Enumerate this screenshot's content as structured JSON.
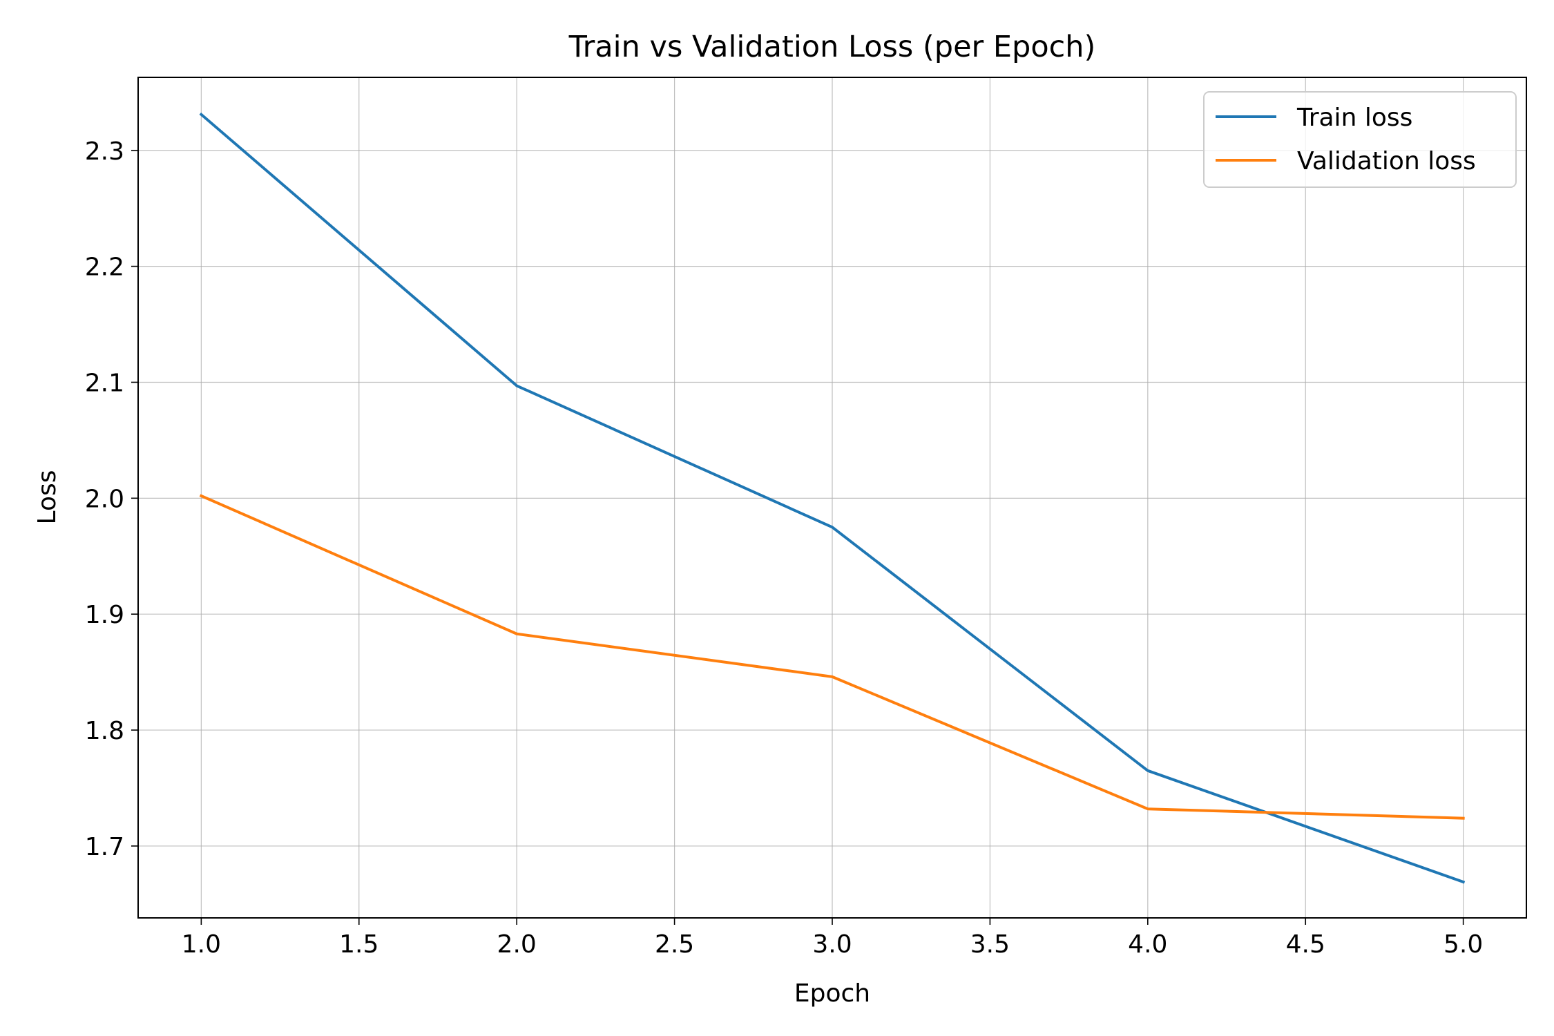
{
  "chart_data": {
    "type": "line",
    "title": "Train vs Validation Loss (per Epoch)",
    "xlabel": "Epoch",
    "ylabel": "Loss",
    "x": [
      1,
      2,
      3,
      4,
      5
    ],
    "xlim": [
      0.8,
      5.2
    ],
    "ylim": [
      1.638,
      2.363
    ],
    "xticks": [
      1.0,
      1.5,
      2.0,
      2.5,
      3.0,
      3.5,
      4.0,
      4.5,
      5.0
    ],
    "xtick_labels": [
      "1.0",
      "1.5",
      "2.0",
      "2.5",
      "3.0",
      "3.5",
      "4.0",
      "4.5",
      "5.0"
    ],
    "yticks": [
      1.7,
      1.8,
      1.9,
      2.0,
      2.1,
      2.2,
      2.3
    ],
    "ytick_labels": [
      "1.7",
      "1.8",
      "1.9",
      "2.0",
      "2.1",
      "2.2",
      "2.3"
    ],
    "grid": true,
    "legend_position": "top-right",
    "series": [
      {
        "name": "Train loss",
        "color": "#1f77b4",
        "values": [
          2.331,
          2.097,
          1.975,
          1.765,
          1.669
        ]
      },
      {
        "name": "Validation loss",
        "color": "#ff7f0e",
        "values": [
          2.002,
          1.883,
          1.846,
          1.732,
          1.724
        ]
      }
    ]
  }
}
